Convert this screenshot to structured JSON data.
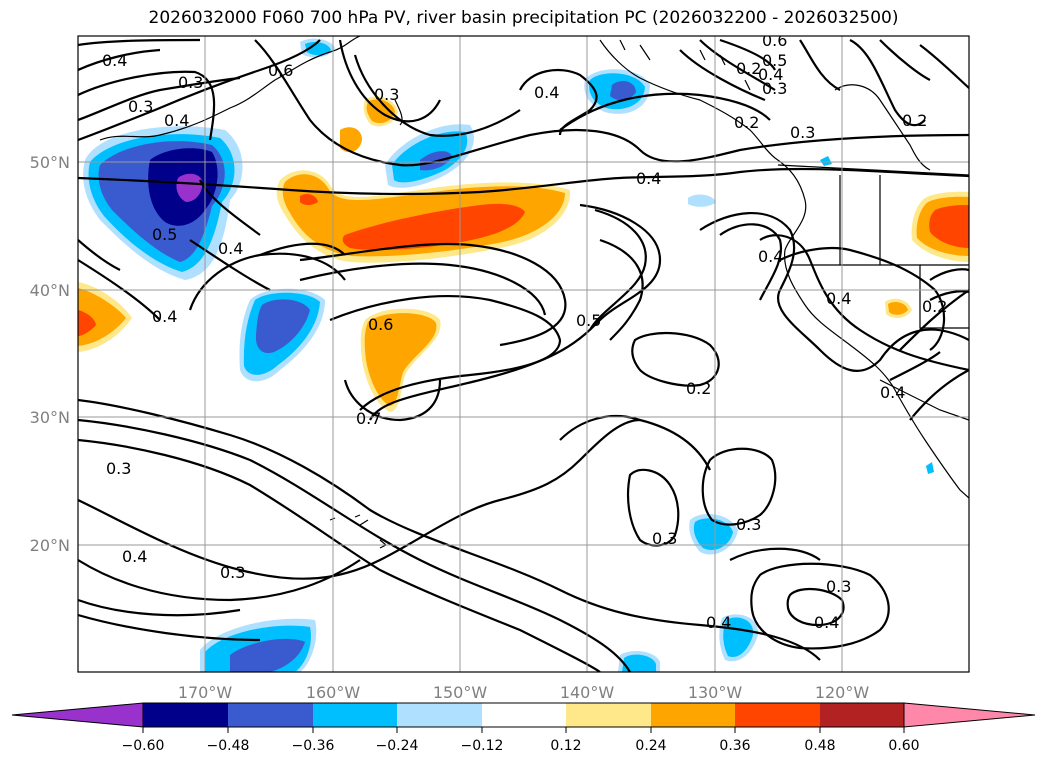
{
  "title": "2026032000 F060 700 hPa PV, river basin precipitation PC (2026032200 - 2026032500)",
  "map": {
    "lon_ticks": [
      "170°W",
      "160°W",
      "150°W",
      "140°W",
      "130°W",
      "120°W"
    ],
    "lat_ticks": [
      "50°N",
      "40°N",
      "30°N",
      "20°N"
    ],
    "contour_labels": [
      "0.4",
      "0.3",
      "0.3",
      "0.4",
      "0.6",
      "0.3",
      "0.4",
      "0.5",
      "0.4",
      "0.4",
      "0.4",
      "0.2",
      "0.3",
      "0.6",
      "0.5",
      "0.4",
      "0.3",
      "0.2",
      "0.4",
      "0.4",
      "0.2",
      "0.4",
      "0.6",
      "0.5",
      "0.7",
      "0.2",
      "0.4",
      "0.3",
      "0.3",
      "0.3",
      "0.4",
      "0.3",
      "0.3",
      "0.4",
      "0.2"
    ]
  },
  "colorbar": {
    "labels": [
      "−0.60",
      "−0.48",
      "−0.36",
      "−0.24",
      "−0.12",
      "0.12",
      "0.24",
      "0.36",
      "0.48",
      "0.60"
    ],
    "colors": [
      "#9932cc",
      "#00008b",
      "#3a5bd0",
      "#00bfff",
      "#b0e0ff",
      "#ffffff",
      "#ffe88a",
      "#ffa500",
      "#ff4500",
      "#b22222",
      "#ff88aa"
    ]
  }
}
